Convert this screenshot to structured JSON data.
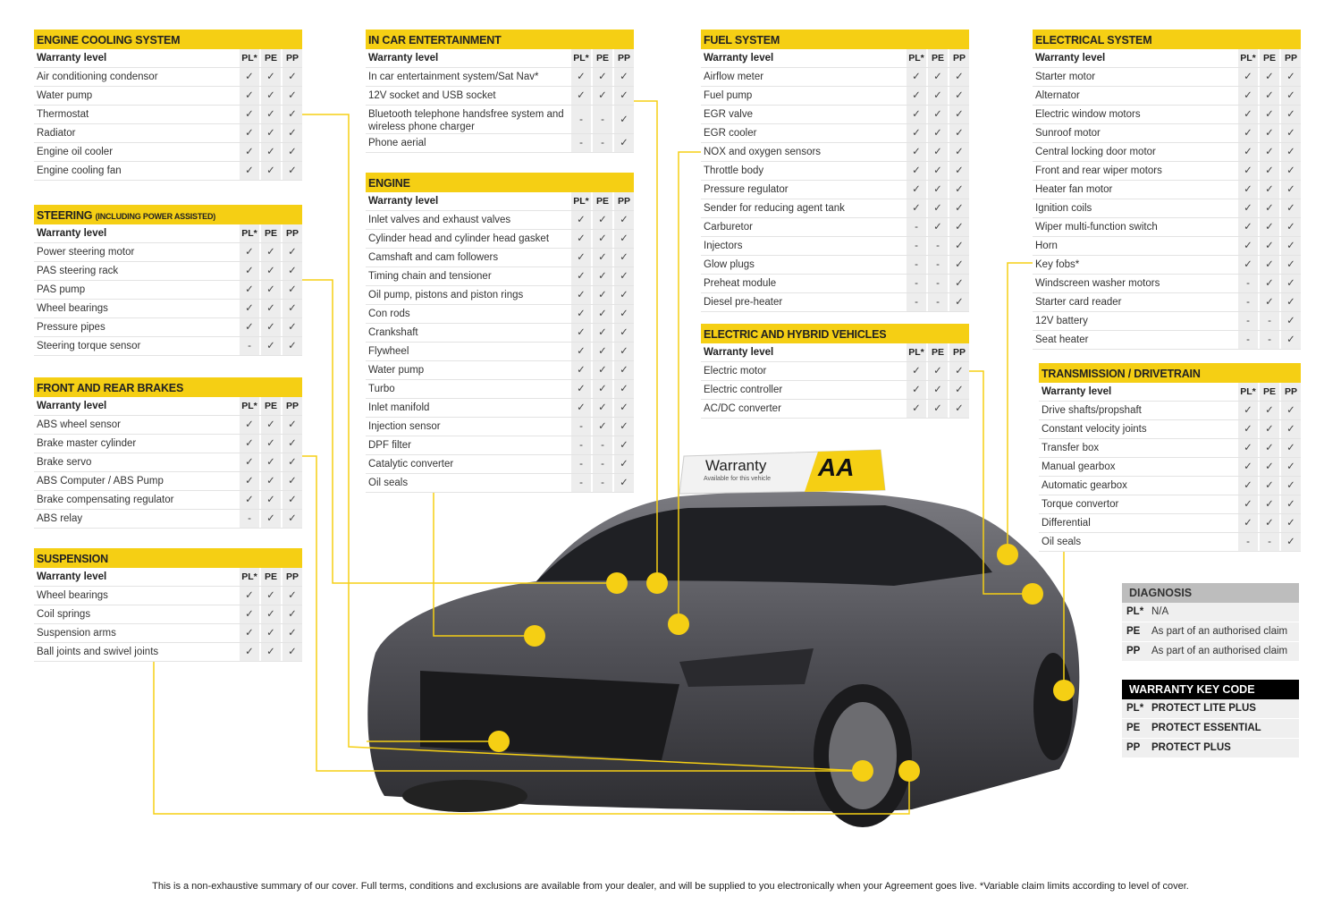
{
  "columns": {
    "label": "Warranty level",
    "levels": [
      "PL*",
      "PE",
      "PP"
    ]
  },
  "tables": [
    {
      "id": "cooling",
      "title": "ENGINE COOLING SYSTEM",
      "rows": [
        {
          "name": "Air conditioning condensor",
          "cover": [
            "✓",
            "✓",
            "✓"
          ]
        },
        {
          "name": "Water pump",
          "cover": [
            "✓",
            "✓",
            "✓"
          ]
        },
        {
          "name": "Thermostat",
          "cover": [
            "✓",
            "✓",
            "✓"
          ]
        },
        {
          "name": "Radiator",
          "cover": [
            "✓",
            "✓",
            "✓"
          ]
        },
        {
          "name": "Engine oil cooler",
          "cover": [
            "✓",
            "✓",
            "✓"
          ]
        },
        {
          "name": "Engine cooling fan",
          "cover": [
            "✓",
            "✓",
            "✓"
          ]
        }
      ]
    },
    {
      "id": "steering",
      "title": "STEERING",
      "subtitle": "(INCLUDING POWER ASSISTED)",
      "rows": [
        {
          "name": "Power steering motor",
          "cover": [
            "✓",
            "✓",
            "✓"
          ]
        },
        {
          "name": "PAS steering rack",
          "cover": [
            "✓",
            "✓",
            "✓"
          ]
        },
        {
          "name": "PAS pump",
          "cover": [
            "✓",
            "✓",
            "✓"
          ]
        },
        {
          "name": "Wheel bearings",
          "cover": [
            "✓",
            "✓",
            "✓"
          ]
        },
        {
          "name": "Pressure pipes",
          "cover": [
            "✓",
            "✓",
            "✓"
          ]
        },
        {
          "name": "Steering torque sensor",
          "cover": [
            "-",
            "✓",
            "✓"
          ]
        }
      ]
    },
    {
      "id": "brakes",
      "title": "FRONT AND REAR BRAKES",
      "rows": [
        {
          "name": "ABS wheel sensor",
          "cover": [
            "✓",
            "✓",
            "✓"
          ]
        },
        {
          "name": "Brake master cylinder",
          "cover": [
            "✓",
            "✓",
            "✓"
          ]
        },
        {
          "name": "Brake servo",
          "cover": [
            "✓",
            "✓",
            "✓"
          ]
        },
        {
          "name": "ABS Computer / ABS Pump",
          "cover": [
            "✓",
            "✓",
            "✓"
          ]
        },
        {
          "name": "Brake compensating regulator",
          "cover": [
            "✓",
            "✓",
            "✓"
          ]
        },
        {
          "name": "ABS relay",
          "cover": [
            "-",
            "✓",
            "✓"
          ]
        }
      ]
    },
    {
      "id": "suspension",
      "title": "SUSPENSION",
      "rows": [
        {
          "name": "Wheel bearings",
          "cover": [
            "✓",
            "✓",
            "✓"
          ]
        },
        {
          "name": "Coil springs",
          "cover": [
            "✓",
            "✓",
            "✓"
          ]
        },
        {
          "name": "Suspension arms",
          "cover": [
            "✓",
            "✓",
            "✓"
          ]
        },
        {
          "name": "Ball joints and swivel joints",
          "cover": [
            "✓",
            "✓",
            "✓"
          ]
        }
      ]
    },
    {
      "id": "entertainment",
      "title": "IN CAR ENTERTAINMENT",
      "rows": [
        {
          "name": "In car entertainment system/Sat Nav*",
          "cover": [
            "✓",
            "✓",
            "✓"
          ]
        },
        {
          "name": "12V socket and USB socket",
          "cover": [
            "✓",
            "✓",
            "✓"
          ]
        },
        {
          "name": "Bluetooth telephone handsfree system and wireless phone charger",
          "cover": [
            "-",
            "-",
            "✓"
          ]
        },
        {
          "name": "Phone aerial",
          "cover": [
            "-",
            "-",
            "✓"
          ]
        }
      ]
    },
    {
      "id": "engine",
      "title": "ENGINE",
      "rows": [
        {
          "name": "Inlet valves and exhaust valves",
          "cover": [
            "✓",
            "✓",
            "✓"
          ]
        },
        {
          "name": "Cylinder head and cylinder head gasket",
          "cover": [
            "✓",
            "✓",
            "✓"
          ]
        },
        {
          "name": "Camshaft and cam followers",
          "cover": [
            "✓",
            "✓",
            "✓"
          ]
        },
        {
          "name": "Timing chain and tensioner",
          "cover": [
            "✓",
            "✓",
            "✓"
          ]
        },
        {
          "name": "Oil pump, pistons and piston rings",
          "cover": [
            "✓",
            "✓",
            "✓"
          ]
        },
        {
          "name": "Con rods",
          "cover": [
            "✓",
            "✓",
            "✓"
          ]
        },
        {
          "name": "Crankshaft",
          "cover": [
            "✓",
            "✓",
            "✓"
          ]
        },
        {
          "name": "Flywheel",
          "cover": [
            "✓",
            "✓",
            "✓"
          ]
        },
        {
          "name": "Water pump",
          "cover": [
            "✓",
            "✓",
            "✓"
          ]
        },
        {
          "name": "Turbo",
          "cover": [
            "✓",
            "✓",
            "✓"
          ]
        },
        {
          "name": "Inlet manifold",
          "cover": [
            "✓",
            "✓",
            "✓"
          ]
        },
        {
          "name": "Injection sensor",
          "cover": [
            "-",
            "✓",
            "✓"
          ]
        },
        {
          "name": "DPF filter",
          "cover": [
            "-",
            "-",
            "✓"
          ]
        },
        {
          "name": "Catalytic converter",
          "cover": [
            "-",
            "-",
            "✓"
          ]
        },
        {
          "name": "Oil seals",
          "cover": [
            "-",
            "-",
            "✓"
          ]
        }
      ]
    },
    {
      "id": "fuel",
      "title": "FUEL SYSTEM",
      "rows": [
        {
          "name": "Airflow meter",
          "cover": [
            "✓",
            "✓",
            "✓"
          ]
        },
        {
          "name": "Fuel pump",
          "cover": [
            "✓",
            "✓",
            "✓"
          ]
        },
        {
          "name": "EGR valve",
          "cover": [
            "✓",
            "✓",
            "✓"
          ]
        },
        {
          "name": "EGR cooler",
          "cover": [
            "✓",
            "✓",
            "✓"
          ]
        },
        {
          "name": "NOX and oxygen sensors",
          "cover": [
            "✓",
            "✓",
            "✓"
          ]
        },
        {
          "name": "Throttle body",
          "cover": [
            "✓",
            "✓",
            "✓"
          ]
        },
        {
          "name": "Pressure regulator",
          "cover": [
            "✓",
            "✓",
            "✓"
          ]
        },
        {
          "name": "Sender for reducing agent tank",
          "cover": [
            "✓",
            "✓",
            "✓"
          ]
        },
        {
          "name": "Carburetor",
          "cover": [
            "-",
            "✓",
            "✓"
          ]
        },
        {
          "name": "Injectors",
          "cover": [
            "-",
            "-",
            "✓"
          ]
        },
        {
          "name": "Glow plugs",
          "cover": [
            "-",
            "-",
            "✓"
          ]
        },
        {
          "name": "Preheat module",
          "cover": [
            "-",
            "-",
            "✓"
          ]
        },
        {
          "name": "Diesel pre-heater",
          "cover": [
            "-",
            "-",
            "✓"
          ]
        }
      ]
    },
    {
      "id": "ev",
      "title": "ELECTRIC AND HYBRID VEHICLES",
      "rows": [
        {
          "name": "Electric motor",
          "cover": [
            "✓",
            "✓",
            "✓"
          ]
        },
        {
          "name": "Electric controller",
          "cover": [
            "✓",
            "✓",
            "✓"
          ]
        },
        {
          "name": "AC/DC converter",
          "cover": [
            "✓",
            "✓",
            "✓"
          ]
        }
      ]
    },
    {
      "id": "electrical",
      "title": "ELECTRICAL SYSTEM",
      "rows": [
        {
          "name": "Starter motor",
          "cover": [
            "✓",
            "✓",
            "✓"
          ]
        },
        {
          "name": "Alternator",
          "cover": [
            "✓",
            "✓",
            "✓"
          ]
        },
        {
          "name": "Electric window motors",
          "cover": [
            "✓",
            "✓",
            "✓"
          ]
        },
        {
          "name": "Sunroof motor",
          "cover": [
            "✓",
            "✓",
            "✓"
          ]
        },
        {
          "name": "Central locking door motor",
          "cover": [
            "✓",
            "✓",
            "✓"
          ]
        },
        {
          "name": "Front and rear wiper motors",
          "cover": [
            "✓",
            "✓",
            "✓"
          ]
        },
        {
          "name": "Heater fan motor",
          "cover": [
            "✓",
            "✓",
            "✓"
          ]
        },
        {
          "name": "Ignition coils",
          "cover": [
            "✓",
            "✓",
            "✓"
          ]
        },
        {
          "name": "Wiper multi-function switch",
          "cover": [
            "✓",
            "✓",
            "✓"
          ]
        },
        {
          "name": "Horn",
          "cover": [
            "✓",
            "✓",
            "✓"
          ]
        },
        {
          "name": "Key fobs*",
          "cover": [
            "✓",
            "✓",
            "✓"
          ]
        },
        {
          "name": "Windscreen washer motors",
          "cover": [
            "-",
            "✓",
            "✓"
          ]
        },
        {
          "name": "Starter card reader",
          "cover": [
            "-",
            "✓",
            "✓"
          ]
        },
        {
          "name": "12V battery",
          "cover": [
            "-",
            "-",
            "✓"
          ]
        },
        {
          "name": "Seat heater",
          "cover": [
            "-",
            "-",
            "✓"
          ]
        }
      ]
    },
    {
      "id": "transmission",
      "title": "TRANSMISSION / DRIVETRAIN",
      "rows": [
        {
          "name": "Drive shafts/propshaft",
          "cover": [
            "✓",
            "✓",
            "✓"
          ]
        },
        {
          "name": "Constant velocity joints",
          "cover": [
            "✓",
            "✓",
            "✓"
          ]
        },
        {
          "name": "Transfer box",
          "cover": [
            "✓",
            "✓",
            "✓"
          ]
        },
        {
          "name": "Manual gearbox",
          "cover": [
            "✓",
            "✓",
            "✓"
          ]
        },
        {
          "name": "Automatic gearbox",
          "cover": [
            "✓",
            "✓",
            "✓"
          ]
        },
        {
          "name": "Torque convertor",
          "cover": [
            "✓",
            "✓",
            "✓"
          ]
        },
        {
          "name": "Differential",
          "cover": [
            "✓",
            "✓",
            "✓"
          ]
        },
        {
          "name": "Oil seals",
          "cover": [
            "-",
            "-",
            "✓"
          ]
        }
      ]
    }
  ],
  "diagnosis": {
    "title": "DIAGNOSIS",
    "rows": [
      {
        "key": "PL*",
        "value": "N/A"
      },
      {
        "key": "PE",
        "value": "As part of an authorised claim"
      },
      {
        "key": "PP",
        "value": "As part of an authorised claim"
      }
    ]
  },
  "key_code": {
    "title": "WARRANTY KEY CODE",
    "rows": [
      {
        "key": "PL*",
        "value": "PROTECT LITE PLUS"
      },
      {
        "key": "PE",
        "value": "PROTECT ESSENTIAL"
      },
      {
        "key": "PP",
        "value": "PROTECT PLUS"
      }
    ]
  },
  "sign": {
    "title": "Warranty",
    "subtitle": "Available for this vehicle",
    "logo": "AA"
  },
  "footer": "This is a non-exhaustive summary of our cover. Full terms, conditions and exclusions are available from your dealer, and will be supplied to you electronically when your Agreement goes live. *Variable claim limits according to level of cover.",
  "colors": {
    "accent": "#f5cf14",
    "car_body": "#5a5a60",
    "header_dark": "#000000",
    "diagnosis_header": "#bdbdbd"
  }
}
